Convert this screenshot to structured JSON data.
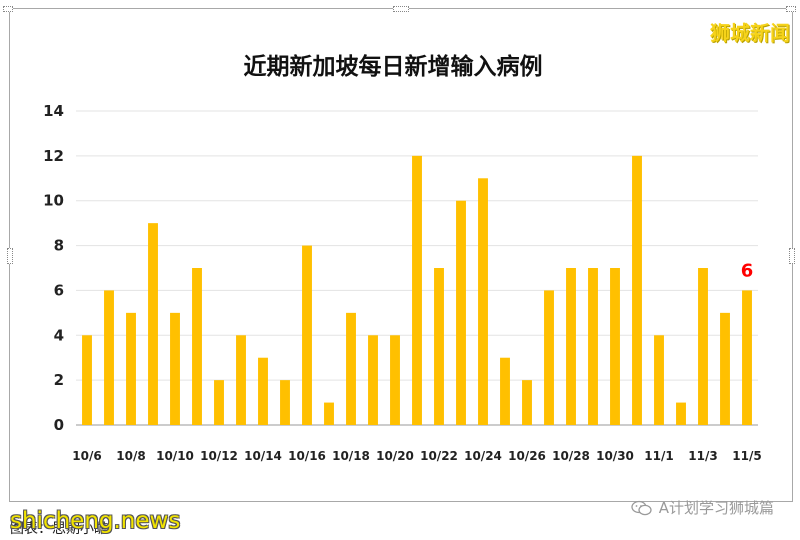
{
  "brand_label": "狮城新闻",
  "watermark_left": "shicheng.news",
  "watermark_right": "A计划学习狮城篇",
  "caption": "图表：思期小瞻",
  "colors": {
    "bar": "#ffc000",
    "highlight_label": "#ff0000",
    "grid": "#e3e3e3"
  },
  "chart_data": {
    "type": "bar",
    "title": "近期新加坡每日新增输入病例",
    "xlabel": "",
    "ylabel": "",
    "ylim": [
      0,
      14
    ],
    "yticks": [
      0,
      2,
      4,
      6,
      8,
      10,
      12,
      14
    ],
    "grid": true,
    "categories": [
      "10/6",
      "10/7",
      "10/8",
      "10/9",
      "10/10",
      "10/11",
      "10/12",
      "10/13",
      "10/14",
      "10/15",
      "10/16",
      "10/17",
      "10/18",
      "10/19",
      "10/20",
      "10/21",
      "10/22",
      "10/23",
      "10/24",
      "10/25",
      "10/26",
      "10/27",
      "10/28",
      "10/29",
      "10/30",
      "10/31",
      "11/1",
      "11/2",
      "11/3",
      "11/4",
      "11/5"
    ],
    "x_tick_labels": [
      "10/6",
      "10/8",
      "10/10",
      "10/12",
      "10/14",
      "10/16",
      "10/18",
      "10/20",
      "10/22",
      "10/24",
      "10/26",
      "10/28",
      "10/30",
      "11/1",
      "11/3",
      "11/5"
    ],
    "values": [
      4,
      6,
      5,
      9,
      5,
      7,
      2,
      4,
      3,
      2,
      8,
      1,
      5,
      4,
      4,
      12,
      7,
      10,
      11,
      3,
      2,
      6,
      7,
      7,
      7,
      12,
      4,
      1,
      7,
      5,
      6
    ],
    "data_labels": [
      {
        "category": "11/5",
        "text": "6"
      }
    ]
  }
}
